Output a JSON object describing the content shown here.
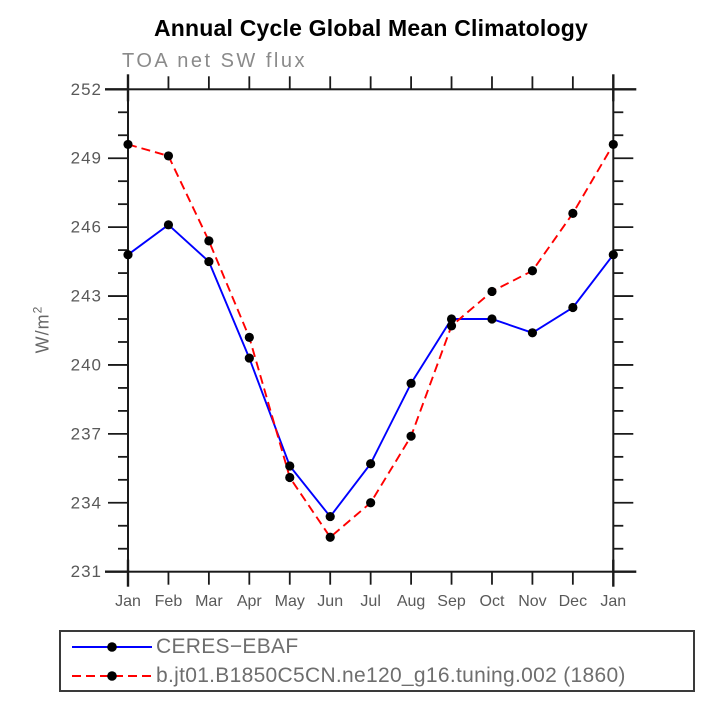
{
  "title": "Annual Cycle Global Mean Climatology",
  "subtitle": "TOA net SW flux",
  "y_axis": {
    "label_main": "W/m",
    "label_exp": "2"
  },
  "colors": {
    "obs_line": "#0000ff",
    "model_line": "#ff0000",
    "marker": "#000000",
    "axis": "#1a1a1a",
    "tick_label": "#595959",
    "subtitle_text": "#8a8a8a",
    "legend_text": "#6e6e6e",
    "title_text": "#000000"
  },
  "legend": {
    "entries": [
      {
        "label": "CERES−EBAF",
        "style": "solid",
        "color": "#0000ff"
      },
      {
        "label": "b.jt01.B1850C5CN.ne120_g16.tuning.002 (1860)",
        "style": "dashed",
        "color": "#ff0000"
      }
    ]
  },
  "chart_data": {
    "type": "line",
    "title": "Annual Cycle Global Mean Climatology",
    "subtitle": "TOA net SW flux",
    "xlabel": "",
    "ylabel": "W/m2",
    "categories": [
      "Jan",
      "Feb",
      "Mar",
      "Apr",
      "May",
      "Jun",
      "Jul",
      "Aug",
      "Sep",
      "Oct",
      "Nov",
      "Dec",
      "Jan"
    ],
    "series": [
      {
        "name": "CERES−EBAF",
        "color": "#0000ff",
        "style": "solid",
        "marker": "filled-circle",
        "values": [
          244.8,
          246.1,
          244.5,
          240.3,
          235.6,
          233.4,
          235.7,
          239.2,
          242.0,
          242.0,
          241.4,
          242.5,
          244.8
        ]
      },
      {
        "name": "b.jt01.B1850C5CN.ne120_g16.tuning.002 (1860)",
        "color": "#ff0000",
        "style": "dashed",
        "marker": "filled-circle",
        "values": [
          249.6,
          249.1,
          245.4,
          241.2,
          235.1,
          232.5,
          234.0,
          236.9,
          241.7,
          243.2,
          244.1,
          246.6,
          249.6
        ]
      }
    ],
    "ylim": [
      231,
      252
    ],
    "ytick_major": 3,
    "ytick_minor": 1,
    "grid": false,
    "legend_position": "bottom"
  }
}
